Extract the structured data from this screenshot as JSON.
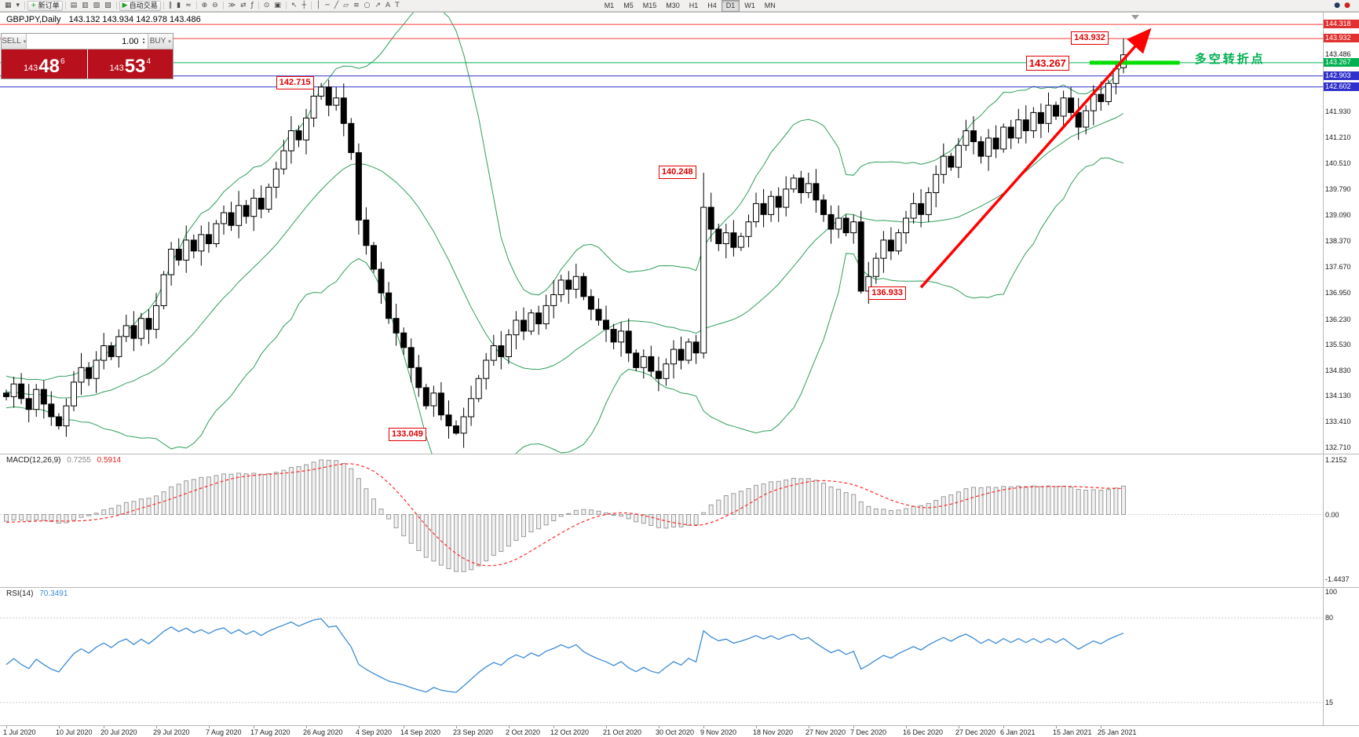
{
  "colors": {
    "bull": "#ffffff",
    "bear": "#000000",
    "bollinger": "#2e9e5b",
    "macd_signal": "#ff2a2a",
    "macd_hist_fill": "#f0f0f0",
    "macd_hist_stroke": "#9a9a9a",
    "rsi_line": "#3d8bd4",
    "hline_red": "#ff3b3b",
    "hline_green": "#00b050",
    "hline_blue": "#3030cc",
    "annotation_red": "#e00000",
    "trade_red": "#b8101c",
    "highlight_green": "#00dd00",
    "turning_label_green": "#00b050"
  },
  "toolbar": {
    "groups": [
      {
        "items": [
          {
            "name": "new-chart-icon",
            "glyph": "▦"
          },
          {
            "name": "chart-profiles-icon",
            "glyph": "▾"
          }
        ]
      },
      {
        "items": [
          {
            "name": "new-order-button",
            "glyph": "+",
            "glyph_color": "#1f9d1f",
            "label": "新订单"
          }
        ]
      },
      {
        "items": [
          {
            "name": "market-watch-icon",
            "glyph": "▤"
          },
          {
            "name": "data-window-icon",
            "glyph": "▥"
          },
          {
            "name": "navigator-icon",
            "glyph": "▧"
          },
          {
            "name": "terminal-icon",
            "glyph": "▨"
          }
        ]
      },
      {
        "items": [
          {
            "name": "autotrading-button",
            "glyph": "▶",
            "glyph_color": "#1f9d1f",
            "label": "自动交易"
          }
        ]
      },
      {
        "items": [
          {
            "name": "bar-chart-mode-icon",
            "glyph": "∥"
          },
          {
            "name": "candlestick-mode-icon",
            "glyph": "▮"
          },
          {
            "name": "line-chart-mode-icon",
            "glyph": "≈"
          }
        ]
      },
      {
        "items": [
          {
            "name": "zoom-in-icon",
            "glyph": "⊕"
          },
          {
            "name": "zoom-out-icon",
            "glyph": "⊖"
          }
        ]
      },
      {
        "items": [
          {
            "name": "auto-scroll-icon",
            "glyph": "≫"
          },
          {
            "name": "chart-shift-icon",
            "glyph": "⇄"
          },
          {
            "name": "indicators-icon",
            "glyph": "ƒ"
          }
        ]
      },
      {
        "items": [
          {
            "name": "periods-icon",
            "glyph": "⊙"
          },
          {
            "name": "templates-icon",
            "glyph": "▣"
          }
        ]
      },
      {
        "items": [
          {
            "name": "cursor-icon",
            "glyph": "↖"
          },
          {
            "name": "crosshair-icon",
            "glyph": "┼"
          }
        ]
      },
      {
        "items": [
          {
            "name": "vertical-line-icon",
            "glyph": "│"
          },
          {
            "name": "horizontal-line-icon",
            "glyph": "─"
          },
          {
            "name": "trendline-icon",
            "glyph": "╱"
          },
          {
            "name": "channel-icon",
            "glyph": "▱"
          },
          {
            "name": "fibonacci-icon",
            "glyph": "≡"
          },
          {
            "name": "shapes-icon",
            "glyph": "○"
          },
          {
            "name": "arrows-icon",
            "glyph": "↗"
          },
          {
            "name": "text-icon",
            "glyph": "A"
          },
          {
            "name": "text-label-icon",
            "glyph": "T"
          }
        ]
      }
    ],
    "timeframes": [
      {
        "label": "M1",
        "active": false
      },
      {
        "label": "M5",
        "active": false
      },
      {
        "label": "M15",
        "active": false
      },
      {
        "label": "M30",
        "active": false
      },
      {
        "label": "H1",
        "active": false
      },
      {
        "label": "H4",
        "active": false
      },
      {
        "label": "D1",
        "active": true
      },
      {
        "label": "W1",
        "active": false
      },
      {
        "label": "MN",
        "active": false
      }
    ],
    "right_icons": [
      {
        "name": "status-circle-blue-icon",
        "glyph": "●",
        "glyph_color": "#223a5e"
      },
      {
        "name": "status-circle-red-icon",
        "glyph": "●",
        "glyph_color": "#cc2222"
      }
    ]
  },
  "chart": {
    "symbol_period": "GBPJPY,Daily",
    "ohlc_text": "143.132 143.934 142.978 143.486"
  },
  "trade_panel": {
    "sell_label": "SELL",
    "buy_label": "BUY",
    "volume": "1.00",
    "bid_value": "143.486",
    "ask_value": "143.534",
    "bid": {
      "prefix": "143",
      "big": "48",
      "sup": "6"
    },
    "ask": {
      "prefix": "143",
      "big": "53",
      "sup": "4"
    }
  },
  "chart_data": {
    "type": "candlestick",
    "symbol": "GBPJPY",
    "period": "Daily",
    "title_ohlc": {
      "open": "143.132",
      "high": "143.934",
      "low": "142.978",
      "close": "143.486"
    },
    "last_candle": {
      "o": 143.132,
      "h": 143.934,
      "l": 142.978,
      "c": 143.486
    },
    "warmup_closes": [
      135.2,
      135.0,
      134.8,
      135.1,
      134.7,
      134.9,
      134.5,
      134.7,
      134.3,
      134.6,
      134.2,
      134.4,
      134.0,
      134.3,
      133.9,
      134.2,
      134.5,
      134.1,
      134.4,
      134.0,
      134.3,
      133.9,
      134.1,
      134.4,
      134.0,
      134.2
    ],
    "closes": [
      134.1,
      134.45,
      134.05,
      133.75,
      134.3,
      133.9,
      133.55,
      133.3,
      133.85,
      134.5,
      134.9,
      134.6,
      135.1,
      135.5,
      135.2,
      135.75,
      136.05,
      135.7,
      136.25,
      135.95,
      136.6,
      137.45,
      138.15,
      137.85,
      138.4,
      138.1,
      138.55,
      138.3,
      138.85,
      139.15,
      138.8,
      139.35,
      139.05,
      139.55,
      139.25,
      139.85,
      140.35,
      140.85,
      141.4,
      141.15,
      141.75,
      142.35,
      142.6,
      142.1,
      142.3,
      141.6,
      140.8,
      138.95,
      138.25,
      137.6,
      136.95,
      136.25,
      135.85,
      135.45,
      134.9,
      134.35,
      133.85,
      134.2,
      133.6,
      133.3,
      133.1,
      133.55,
      134.05,
      134.6,
      135.1,
      135.5,
      135.2,
      135.8,
      136.2,
      135.9,
      136.4,
      136.1,
      136.6,
      136.9,
      137.3,
      137.05,
      137.4,
      136.85,
      136.5,
      136.2,
      135.95,
      135.6,
      135.9,
      135.3,
      134.9,
      135.2,
      134.8,
      134.6,
      135.0,
      135.4,
      135.1,
      135.6,
      135.3,
      139.3,
      138.7,
      138.3,
      138.6,
      138.2,
      138.5,
      138.9,
      139.4,
      139.1,
      139.6,
      139.3,
      139.8,
      140.1,
      139.7,
      139.95,
      139.5,
      139.1,
      138.7,
      139.0,
      138.6,
      138.9,
      137.0,
      137.4,
      137.9,
      138.4,
      138.1,
      138.6,
      139.0,
      139.4,
      139.1,
      139.7,
      140.2,
      140.7,
      140.4,
      141.0,
      141.4,
      141.1,
      140.7,
      141.2,
      140.9,
      141.5,
      141.2,
      141.7,
      141.4,
      141.9,
      141.6,
      142.1,
      141.8,
      142.3,
      141.9,
      141.5,
      141.95,
      142.4,
      142.2,
      142.7,
      143.1,
      143.49
    ],
    "extreme_overrides": [
      {
        "idx": 42,
        "high": 142.715
      },
      {
        "idx": 60,
        "low": 133.049
      },
      {
        "idx": 93,
        "high": 140.248
      },
      {
        "idx": 114,
        "low": 136.933
      }
    ],
    "x_axis": {
      "labels": [
        {
          "text": "1 Jul 2020",
          "idx": 0
        },
        {
          "text": "10 Jul 2020",
          "idx": 7
        },
        {
          "text": "20 Jul 2020",
          "idx": 13
        },
        {
          "text": "29 Jul 2020",
          "idx": 20
        },
        {
          "text": "7 Aug 2020",
          "idx": 27
        },
        {
          "text": "17 Aug 2020",
          "idx": 33
        },
        {
          "text": "26 Aug 2020",
          "idx": 40
        },
        {
          "text": "4 Sep 2020",
          "idx": 47
        },
        {
          "text": "14 Sep 2020",
          "idx": 53
        },
        {
          "text": "23 Sep 2020",
          "idx": 60
        },
        {
          "text": "2 Oct 2020",
          "idx": 67
        },
        {
          "text": "12 Oct 2020",
          "idx": 73
        },
        {
          "text": "21 Oct 2020",
          "idx": 80
        },
        {
          "text": "30 Oct 2020",
          "idx": 87
        },
        {
          "text": "9 Nov 2020",
          "idx": 93
        },
        {
          "text": "18 Nov 2020",
          "idx": 100
        },
        {
          "text": "27 Nov 2020",
          "idx": 107
        },
        {
          "text": "7 Dec 2020",
          "idx": 113
        },
        {
          "text": "16 Dec 2020",
          "idx": 120
        },
        {
          "text": "27 Dec 2020",
          "idx": 127
        },
        {
          "text": "6 Jan 2021",
          "idx": 133
        },
        {
          "text": "15 Jan 2021",
          "idx": 140
        },
        {
          "text": "25 Jan 2021",
          "idx": 146
        }
      ]
    },
    "y_axis": {
      "markers": [
        {
          "text": "144.318",
          "price": 144.318,
          "style": "red"
        },
        {
          "text": "143.932",
          "price": 143.932,
          "style": "red"
        },
        {
          "text": "143.486",
          "price": 143.486,
          "style": "plain"
        },
        {
          "text": "143.267",
          "price": 143.267,
          "style": "green"
        },
        {
          "text": "142.903",
          "price": 142.903,
          "style": "blue"
        },
        {
          "text": "142.602",
          "price": 142.602,
          "style": "blue"
        }
      ],
      "gridline_labels": [
        {
          "text": "141.930",
          "price": 141.93
        },
        {
          "text": "141.210",
          "price": 141.21
        },
        {
          "text": "140.510",
          "price": 140.51
        },
        {
          "text": "139.790",
          "price": 139.79
        },
        {
          "text": "139.090",
          "price": 139.09
        },
        {
          "text": "138.370",
          "price": 138.37
        },
        {
          "text": "137.670",
          "price": 137.67
        },
        {
          "text": "136.950",
          "price": 136.95
        },
        {
          "text": "136.230",
          "price": 136.23
        },
        {
          "text": "135.530",
          "price": 135.53
        },
        {
          "text": "134.830",
          "price": 134.83
        },
        {
          "text": "134.130",
          "price": 134.13
        },
        {
          "text": "133.410",
          "price": 133.41
        },
        {
          "text": "132.710",
          "price": 132.71
        }
      ]
    },
    "indicators": {
      "bollinger": {
        "period": 20,
        "deviation": 2
      },
      "macd": {
        "label": "MACD(12,26,9)",
        "main_value": "0.7255",
        "signal_value": "0.5914",
        "scale": [
          {
            "text": "1.2152",
            "value": 1.2152
          },
          {
            "text": "0.00",
            "value": 0
          },
          {
            "text": "-1.4437",
            "value": -1.4437
          }
        ]
      },
      "rsi": {
        "label": "RSI(14)",
        "value": "70.3491",
        "scale": [
          {
            "text": "100",
            "value": 100
          },
          {
            "text": "80",
            "value": 80
          },
          {
            "text": "15",
            "value": 15
          }
        ],
        "levels": [
          80,
          15
        ]
      }
    },
    "objects": {
      "hlines": [
        {
          "price": 144.318,
          "style": "red"
        },
        {
          "price": 143.932,
          "style": "red"
        },
        {
          "price": 143.267,
          "style": "green"
        },
        {
          "price": 142.903,
          "style": "blue"
        },
        {
          "price": 142.602,
          "style": "blue"
        }
      ],
      "annotations": [
        {
          "text": "142.715",
          "idx": 36,
          "price": 142.715
        },
        {
          "text": "143.932",
          "idx": 142,
          "price": 143.932
        },
        {
          "text": "143.267",
          "idx": 136,
          "price": 143.267,
          "large": true
        },
        {
          "text": "140.248",
          "idx": 87,
          "price": 140.248
        },
        {
          "text": "136.933",
          "idx": 115,
          "price": 136.933
        },
        {
          "text": "133.049",
          "idx": 51,
          "price": 133.049
        }
      ],
      "trend_arrow": {
        "from": {
          "idx": 122,
          "price": 137.1
        },
        "to": {
          "idx": 152,
          "price": 144.05
        },
        "color": "#ff0000"
      },
      "highlight_segment": {
        "idx_from": 144.5,
        "idx_to": 156.5,
        "price": 143.267,
        "color": "#00dd00"
      },
      "turning_point_label": {
        "text": "多空转折点",
        "idx": 158.5,
        "price": 143.42,
        "color": "#00b050"
      }
    }
  }
}
